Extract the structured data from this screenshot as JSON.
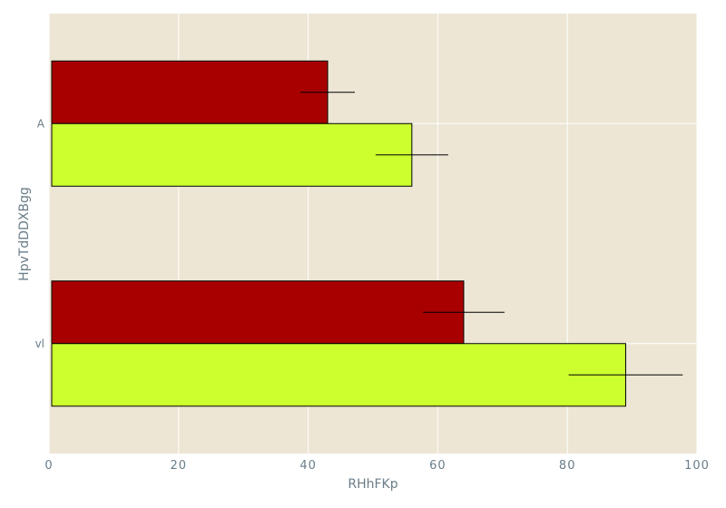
{
  "chart_data": {
    "type": "bar",
    "orientation": "horizontal",
    "categories": [
      "A",
      "vl"
    ],
    "series": [
      {
        "color": "#a80000",
        "values": [
          43,
          64
        ],
        "error": [
          4.2,
          6.3
        ]
      },
      {
        "color": "#cdff2f",
        "values": [
          56,
          89
        ],
        "error": [
          5.6,
          8.8
        ]
      }
    ],
    "xlabel": "RHhFKp",
    "ylabel": "HpvTdDDXBgg",
    "xlim": [
      0,
      100
    ],
    "xticks": [
      "0",
      "20",
      "40",
      "60",
      "80",
      "100"
    ],
    "grid": true,
    "background": "#ede6d5",
    "grid_color": "#ffffff",
    "text_color": "#6a7d89"
  }
}
